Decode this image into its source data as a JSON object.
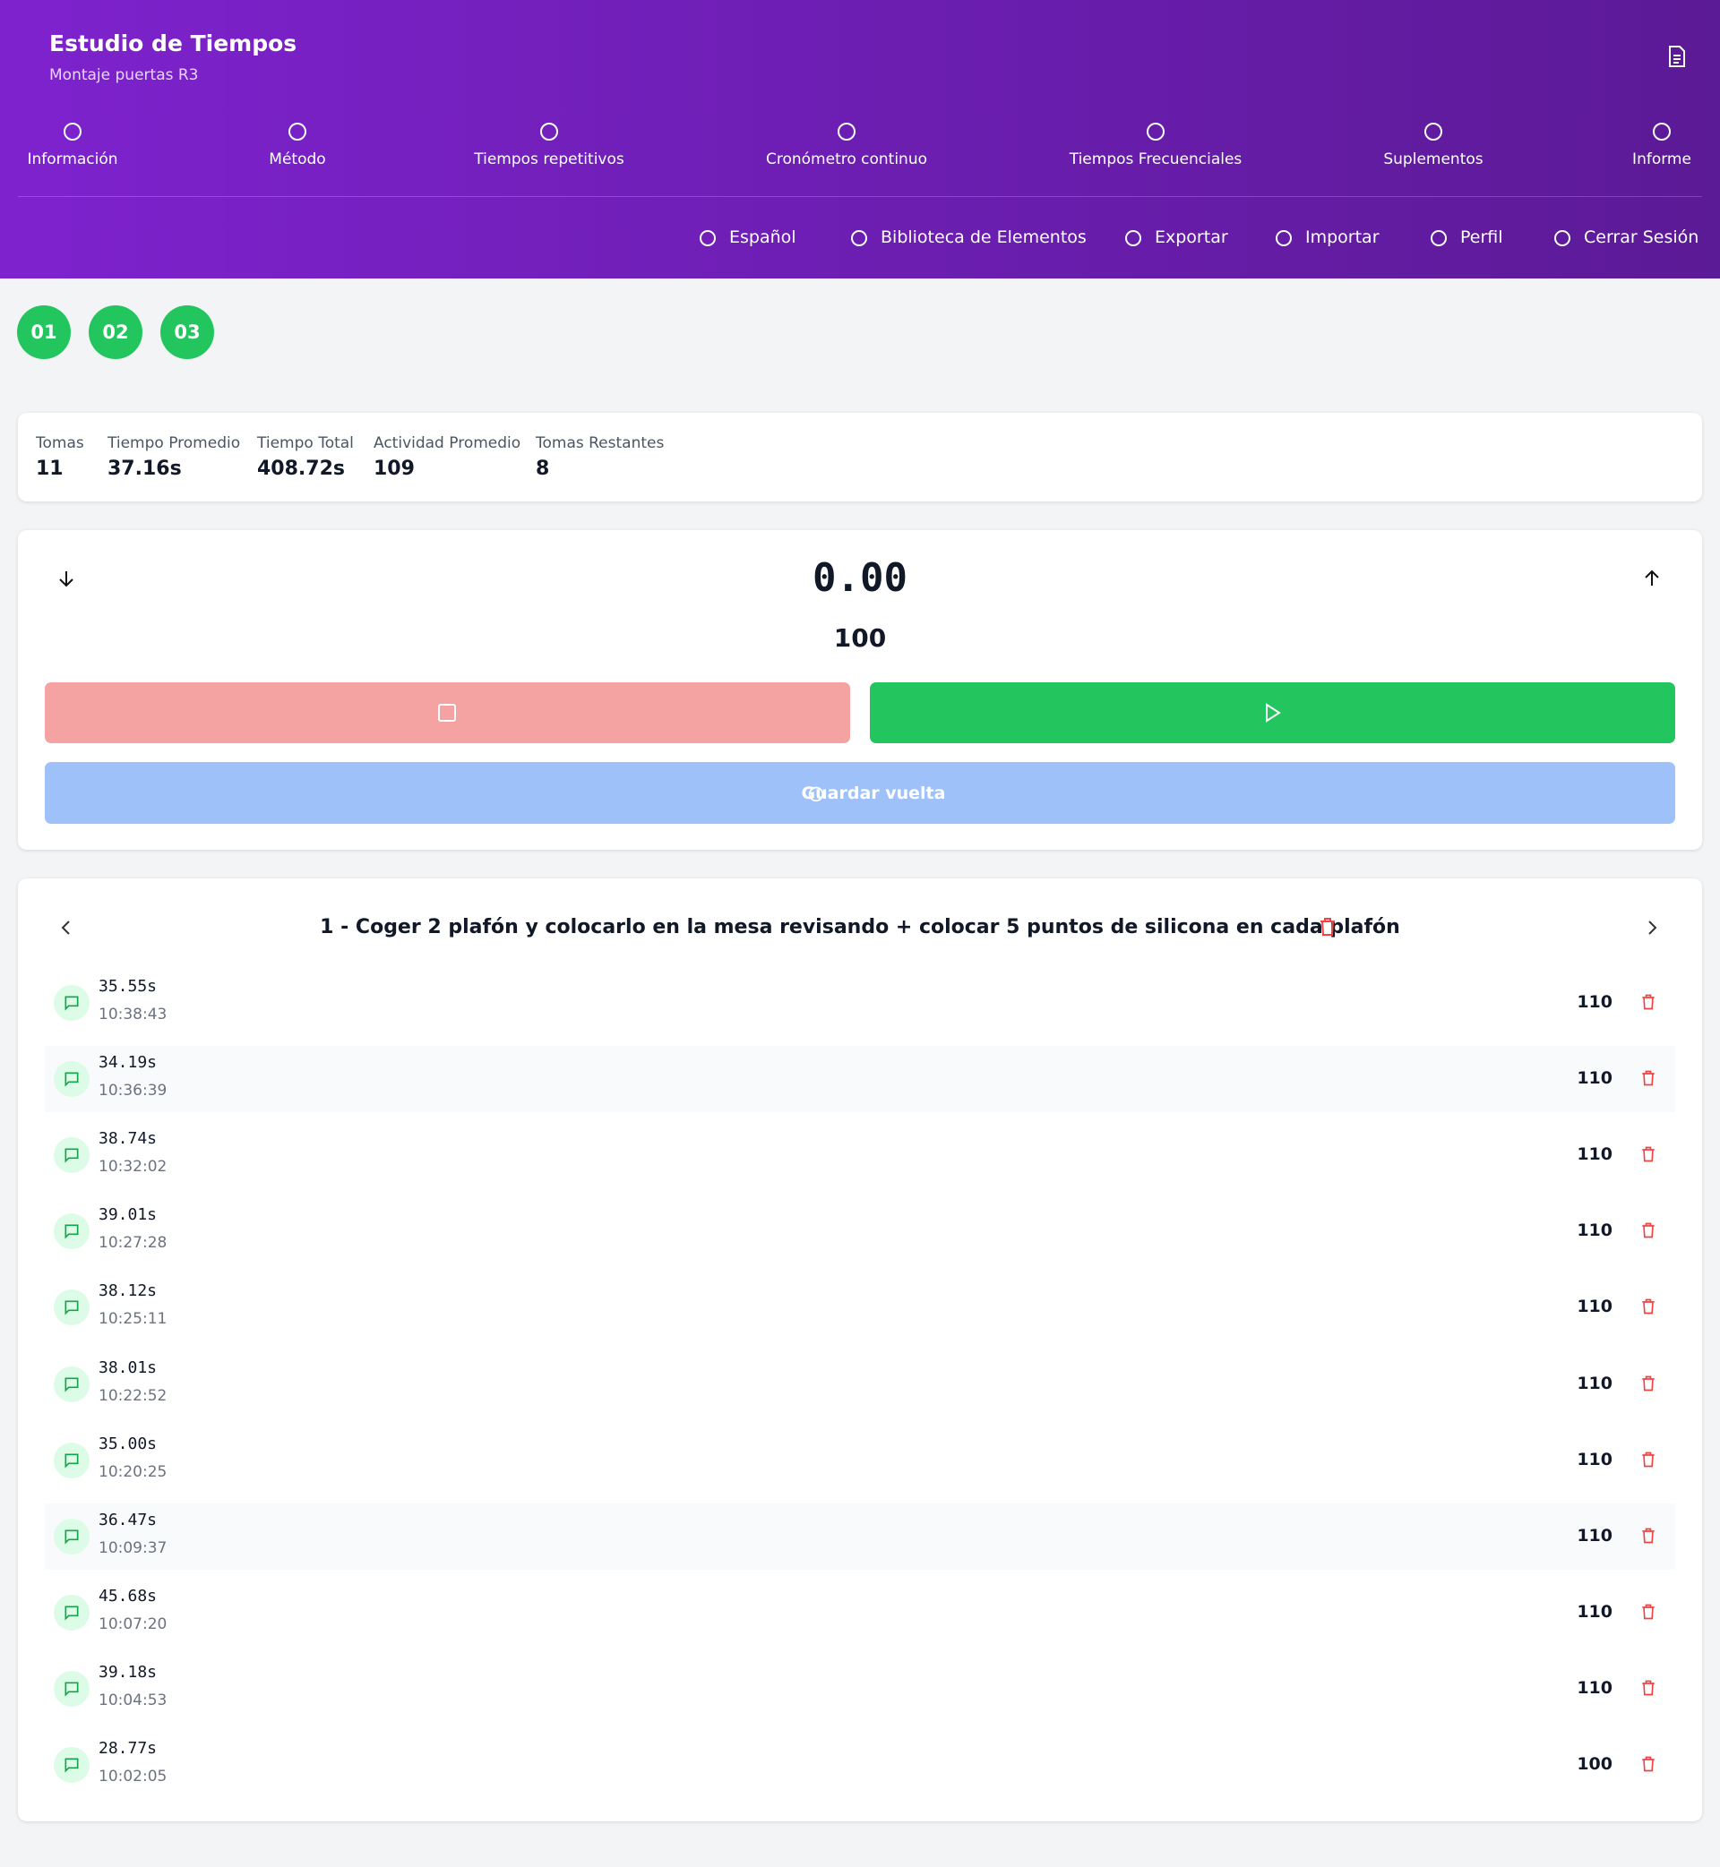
{
  "header": {
    "title": "Estudio de Tiempos",
    "subtitle": "Montaje puertas R3"
  },
  "nav": [
    "Información",
    "Método",
    "Tiempos repetitivos",
    "Cronómetro continuo",
    "Tiempos Frecuenciales",
    "Suplementos",
    "Informe"
  ],
  "toolbar": [
    "Español",
    "Biblioteca de Elementos",
    "Exportar",
    "Importar",
    "Perfil",
    "Cerrar Sesión"
  ],
  "tabs": [
    "01",
    "02",
    "03"
  ],
  "stats": [
    {
      "label": "Tomas",
      "value": "11"
    },
    {
      "label": "Tiempo Promedio",
      "value": "37.16s"
    },
    {
      "label": "Tiempo Total",
      "value": "408.72s"
    },
    {
      "label": "Actividad Promedio",
      "value": "109"
    },
    {
      "label": "Tomas Restantes",
      "value": "8"
    }
  ],
  "timer": {
    "display": "0.00",
    "activity": "100",
    "save_button": "Guardar vuelta"
  },
  "element": {
    "title": "1 - Coger 2 plafón y colocarlo en la mesa revisando + colocar 5 puntos de silicona en cada plafón"
  },
  "laps": [
    {
      "time": "35.55s",
      "clock": "10:38:43",
      "activity": "110"
    },
    {
      "time": "34.19s",
      "clock": "10:36:39",
      "activity": "110"
    },
    {
      "time": "38.74s",
      "clock": "10:32:02",
      "activity": "110"
    },
    {
      "time": "39.01s",
      "clock": "10:27:28",
      "activity": "110"
    },
    {
      "time": "38.12s",
      "clock": "10:25:11",
      "activity": "110"
    },
    {
      "time": "38.01s",
      "clock": "10:22:52",
      "activity": "110"
    },
    {
      "time": "35.00s",
      "clock": "10:20:25",
      "activity": "110"
    },
    {
      "time": "36.47s",
      "clock": "10:09:37",
      "activity": "110"
    },
    {
      "time": "45.68s",
      "clock": "10:07:20",
      "activity": "110"
    },
    {
      "time": "39.18s",
      "clock": "10:04:53",
      "activity": "110"
    },
    {
      "time": "28.77s",
      "clock": "10:02:05",
      "activity": "100"
    }
  ]
}
